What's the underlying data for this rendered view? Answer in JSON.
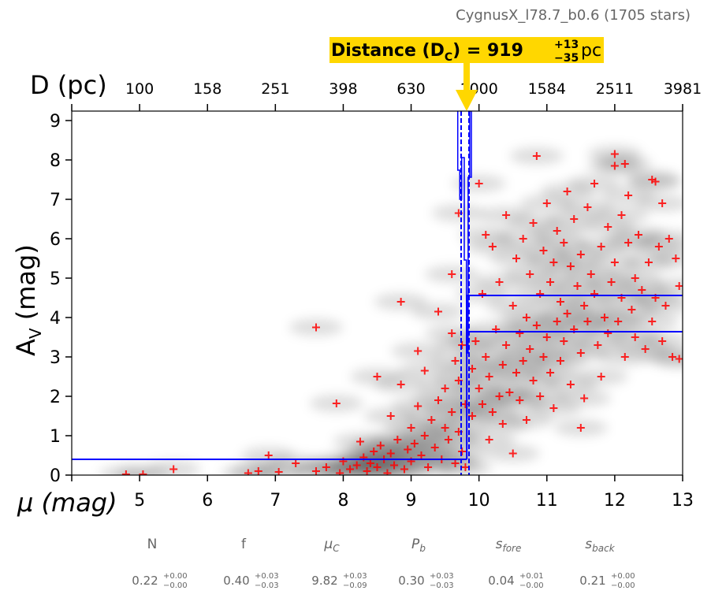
{
  "chart_data": {
    "type": "scatter",
    "title": "CygnusX_l78.7_b0.6 (1705 stars)",
    "annotation": {
      "label": "Distance (D",
      "subscript": "C",
      "equals": ") = 919",
      "plus": "+13",
      "minus": "−35",
      "unit": "pc",
      "mu_value": 9.82,
      "color": "#FFD700"
    },
    "xlabel": "μ (mag)",
    "ylabel": "A",
    "ylabel_sub": "V",
    "ylabel_unit": " (mag)",
    "top_xlabel": "D (pc)",
    "xlim": [
      4,
      13
    ],
    "ylim": [
      0,
      9.24
    ],
    "xticks": [
      4,
      5,
      6,
      7,
      8,
      9,
      10,
      11,
      12,
      13
    ],
    "xtick_labels": [
      "",
      "5",
      "6",
      "7",
      "8",
      "9",
      "10",
      "11",
      "12",
      "13"
    ],
    "yticks": [
      0,
      1,
      2,
      3,
      4,
      5,
      6,
      7,
      8,
      9
    ],
    "ytick_labels": [
      "0",
      "1",
      "2",
      "3",
      "4",
      "5",
      "6",
      "7",
      "8",
      "9"
    ],
    "top_xticks": [
      5,
      6,
      7,
      8,
      9,
      10,
      11,
      12,
      13
    ],
    "top_xtick_labels": [
      "100",
      "158",
      "251",
      "398",
      "630",
      "1000",
      "1584",
      "2511",
      "3981"
    ],
    "colors": {
      "points": "#FF0000",
      "model": "#0000FF",
      "arrow": "#FFD700"
    },
    "model": {
      "mu_c": 9.82,
      "foreground_av": 0.4,
      "background_av_upper": 4.56,
      "background_av_lower": 3.64,
      "mu_c_interval": [
        9.737,
        9.853
      ]
    },
    "mu_c_posterior_outline": [
      [
        9.687,
        9.24
      ],
      [
        9.687,
        7.74
      ],
      [
        9.717,
        7.74
      ],
      [
        9.717,
        7.0
      ],
      [
        9.745,
        7.0
      ],
      [
        9.745,
        8.06
      ],
      [
        9.783,
        8.06
      ],
      [
        9.783,
        5.46
      ],
      [
        9.815,
        5.46
      ],
      [
        9.815,
        3.1
      ],
      [
        9.84,
        3.1
      ],
      [
        9.84,
        7.56
      ],
      [
        9.864,
        7.56
      ],
      [
        9.864,
        9.24
      ],
      [
        9.888,
        9.24
      ],
      [
        9.888,
        7.56
      ],
      [
        9.864,
        7.56
      ]
    ],
    "points": [
      [
        4.8,
        0.02
      ],
      [
        5.05,
        0.02
      ],
      [
        5.5,
        0.15
      ],
      [
        6.6,
        0.05
      ],
      [
        6.75,
        0.1
      ],
      [
        6.9,
        0.5
      ],
      [
        7.05,
        0.08
      ],
      [
        7.3,
        0.3
      ],
      [
        7.6,
        0.1
      ],
      [
        7.6,
        3.75
      ],
      [
        7.75,
        0.2
      ],
      [
        7.9,
        1.82
      ],
      [
        7.95,
        0.05
      ],
      [
        8.0,
        0.35
      ],
      [
        8.1,
        0.15
      ],
      [
        8.2,
        0.25
      ],
      [
        8.25,
        0.85
      ],
      [
        8.3,
        0.45
      ],
      [
        8.35,
        0.1
      ],
      [
        8.4,
        0.3
      ],
      [
        8.45,
        0.6
      ],
      [
        8.5,
        2.5
      ],
      [
        8.5,
        0.2
      ],
      [
        8.55,
        0.75
      ],
      [
        8.6,
        0.4
      ],
      [
        8.65,
        0.05
      ],
      [
        8.7,
        1.5
      ],
      [
        8.7,
        0.55
      ],
      [
        8.75,
        0.25
      ],
      [
        8.8,
        0.9
      ],
      [
        8.85,
        2.3
      ],
      [
        8.85,
        4.4
      ],
      [
        8.9,
        0.15
      ],
      [
        8.95,
        0.65
      ],
      [
        9.0,
        1.2
      ],
      [
        9.0,
        0.35
      ],
      [
        9.05,
        0.8
      ],
      [
        9.1,
        3.15
      ],
      [
        9.1,
        1.75
      ],
      [
        9.15,
        0.5
      ],
      [
        9.2,
        2.65
      ],
      [
        9.2,
        1.0
      ],
      [
        9.25,
        0.2
      ],
      [
        9.3,
        1.4
      ],
      [
        9.35,
        0.7
      ],
      [
        9.4,
        4.15
      ],
      [
        9.4,
        1.9
      ],
      [
        9.45,
        0.4
      ],
      [
        9.5,
        1.2
      ],
      [
        9.5,
        2.2
      ],
      [
        9.55,
        0.9
      ],
      [
        9.6,
        5.1
      ],
      [
        9.6,
        3.6
      ],
      [
        9.6,
        1.6
      ],
      [
        9.65,
        0.3
      ],
      [
        9.65,
        2.9
      ],
      [
        9.7,
        6.65
      ],
      [
        9.7,
        1.1
      ],
      [
        9.7,
        2.4
      ],
      [
        9.75,
        0.6
      ],
      [
        9.75,
        3.3
      ],
      [
        9.8,
        1.8
      ],
      [
        9.8,
        0.2
      ],
      [
        9.9,
        2.7
      ],
      [
        9.9,
        1.5
      ],
      [
        9.95,
        3.4
      ],
      [
        10.0,
        2.2
      ],
      [
        10.0,
        7.4
      ],
      [
        10.05,
        4.6
      ],
      [
        10.05,
        1.8
      ],
      [
        10.1,
        3.0
      ],
      [
        10.1,
        6.1
      ],
      [
        10.15,
        2.5
      ],
      [
        10.15,
        0.9
      ],
      [
        10.2,
        5.8
      ],
      [
        10.2,
        1.6
      ],
      [
        10.25,
        3.7
      ],
      [
        10.3,
        2.0
      ],
      [
        10.3,
        4.9
      ],
      [
        10.35,
        2.8
      ],
      [
        10.35,
        1.3
      ],
      [
        10.4,
        6.6
      ],
      [
        10.4,
        3.3
      ],
      [
        10.45,
        2.1
      ],
      [
        10.5,
        4.3
      ],
      [
        10.5,
        0.55
      ],
      [
        10.55,
        2.6
      ],
      [
        10.55,
        5.5
      ],
      [
        10.6,
        3.6
      ],
      [
        10.6,
        1.9
      ],
      [
        10.65,
        6.0
      ],
      [
        10.65,
        2.9
      ],
      [
        10.7,
        4.0
      ],
      [
        10.7,
        1.4
      ],
      [
        10.75,
        5.1
      ],
      [
        10.75,
        3.2
      ],
      [
        10.8,
        2.4
      ],
      [
        10.8,
        6.4
      ],
      [
        10.85,
        8.1
      ],
      [
        10.85,
        3.8
      ],
      [
        10.9,
        4.6
      ],
      [
        10.9,
        2.0
      ],
      [
        10.95,
        5.7
      ],
      [
        10.95,
        3.0
      ],
      [
        11.0,
        6.9
      ],
      [
        11.0,
        3.5
      ],
      [
        11.05,
        2.6
      ],
      [
        11.05,
        4.9
      ],
      [
        11.1,
        5.4
      ],
      [
        11.1,
        1.7
      ],
      [
        11.15,
        3.9
      ],
      [
        11.15,
        6.2
      ],
      [
        11.2,
        4.4
      ],
      [
        11.2,
        2.9
      ],
      [
        11.25,
        5.9
      ],
      [
        11.25,
        3.4
      ],
      [
        11.3,
        7.2
      ],
      [
        11.3,
        4.1
      ],
      [
        11.35,
        2.3
      ],
      [
        11.35,
        5.3
      ],
      [
        11.4,
        3.7
      ],
      [
        11.4,
        6.5
      ],
      [
        11.45,
        4.8
      ],
      [
        11.5,
        1.2
      ],
      [
        11.5,
        5.6
      ],
      [
        11.5,
        3.1
      ],
      [
        11.55,
        1.95
      ],
      [
        11.55,
        4.3
      ],
      [
        11.6,
        6.8
      ],
      [
        11.6,
        3.9
      ],
      [
        11.65,
        5.1
      ],
      [
        11.7,
        7.4
      ],
      [
        11.7,
        4.6
      ],
      [
        11.75,
        3.3
      ],
      [
        11.8,
        5.8
      ],
      [
        11.8,
        2.5
      ],
      [
        11.85,
        4.0
      ],
      [
        11.9,
        6.3
      ],
      [
        11.9,
        3.6
      ],
      [
        11.95,
        4.9
      ],
      [
        12.0,
        8.15
      ],
      [
        12.0,
        7.85
      ],
      [
        12.0,
        5.4
      ],
      [
        12.05,
        3.9
      ],
      [
        12.1,
        6.6
      ],
      [
        12.1,
        4.5
      ],
      [
        12.15,
        7.9
      ],
      [
        12.15,
        3.0
      ],
      [
        12.2,
        5.9
      ],
      [
        12.2,
        7.1
      ],
      [
        12.25,
        4.2
      ],
      [
        12.3,
        5.0
      ],
      [
        12.3,
        3.5
      ],
      [
        12.35,
        6.1
      ],
      [
        12.4,
        4.7
      ],
      [
        12.45,
        3.2
      ],
      [
        12.5,
        5.4
      ],
      [
        12.55,
        7.5
      ],
      [
        12.55,
        3.9
      ],
      [
        12.6,
        7.45
      ],
      [
        12.6,
        4.5
      ],
      [
        12.65,
        5.8
      ],
      [
        12.7,
        6.9
      ],
      [
        12.7,
        3.4
      ],
      [
        12.75,
        4.3
      ],
      [
        12.8,
        6.0
      ],
      [
        12.85,
        3.0
      ],
      [
        12.9,
        5.5
      ],
      [
        12.95,
        4.8
      ],
      [
        12.95,
        2.95
      ]
    ],
    "parameters": [
      {
        "name": "N",
        "sub": "",
        "italic": false,
        "value": "0.22",
        "plus": "+0.00",
        "minus": "−0.00"
      },
      {
        "name": "f",
        "sub": "",
        "italic": false,
        "value": "0.40",
        "plus": "+0.03",
        "minus": "−0.03"
      },
      {
        "name": "μ",
        "sub": "C",
        "italic": true,
        "value": "9.82",
        "plus": "+0.03",
        "minus": "−0.09"
      },
      {
        "name": "P",
        "sub": "b",
        "italic": true,
        "value": "0.30",
        "plus": "+0.03",
        "minus": "−0.03"
      },
      {
        "name": "s",
        "sub": "fore",
        "italic": true,
        "value": "0.04",
        "plus": "+0.01",
        "minus": "−0.00"
      },
      {
        "name": "s",
        "sub": "back",
        "italic": true,
        "value": "0.21",
        "plus": "+0.00",
        "minus": "−0.00"
      }
    ]
  }
}
